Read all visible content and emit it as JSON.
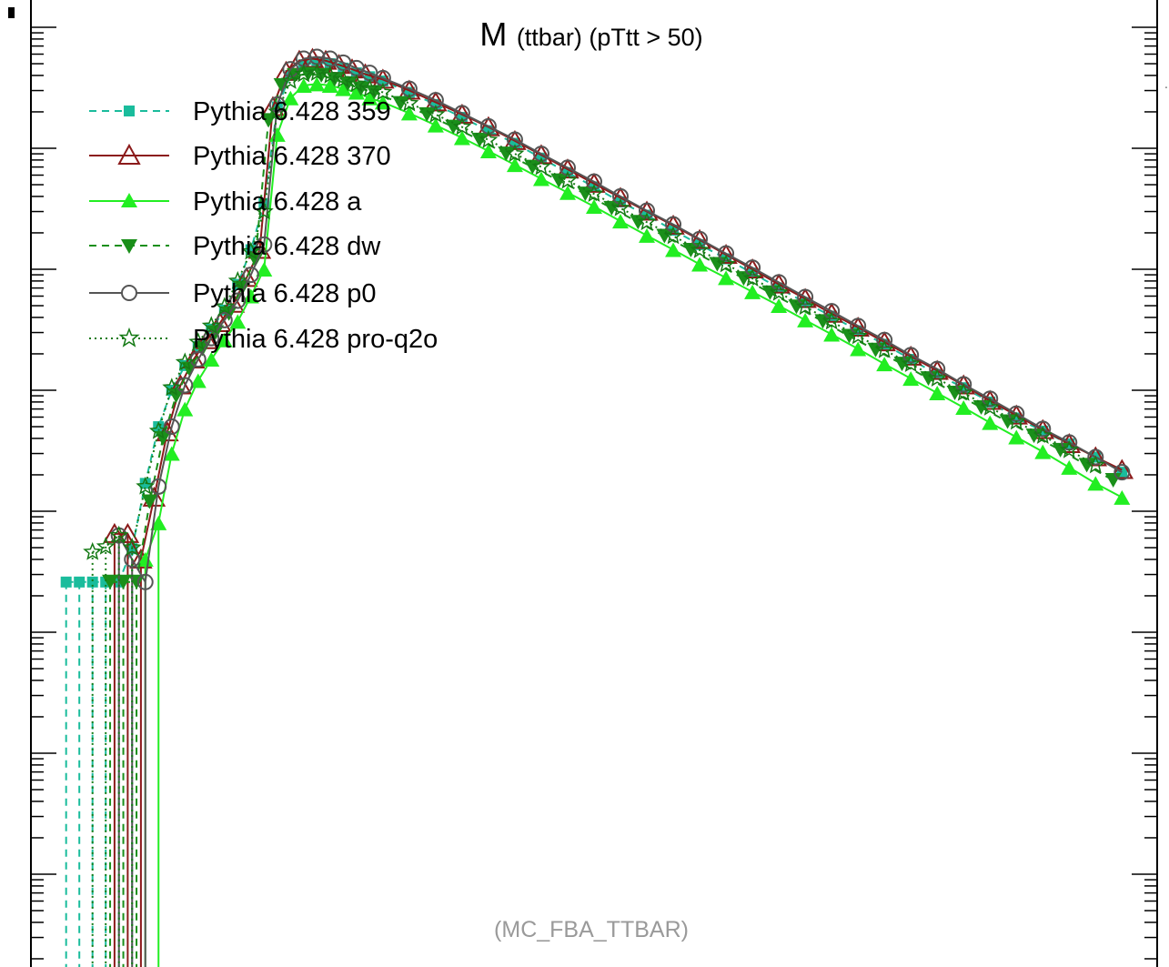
{
  "chart_data": {
    "type": "line",
    "title_main": "M",
    "title_sub": "(ttbar) (pTtt > 50)",
    "watermark": "(MC_FBA_TTBAR)",
    "xlabel": "",
    "ylabel": "",
    "yscale": "log",
    "legend_position": "top-left",
    "series": [
      {
        "name": "Pythia 6.428 359",
        "color": "#1abc9c",
        "line": "dashed",
        "marker": "square",
        "values": [
          [
            0.4,
            2.6e-07
          ],
          [
            0.55,
            2.6e-07
          ],
          [
            0.7,
            2.6e-07
          ],
          [
            0.85,
            2.6e-07
          ],
          [
            1.0,
            2.6e-07
          ],
          [
            1.15,
            4.9e-07
          ],
          [
            1.3,
            1.7e-06
          ],
          [
            1.45,
            5e-06
          ],
          [
            1.6,
            1e-05
          ],
          [
            1.75,
            1.6e-05
          ],
          [
            1.9,
            2.3e-05
          ],
          [
            2.05,
            3.2e-05
          ],
          [
            2.2,
            4.6e-05
          ],
          [
            2.35,
            7.5e-05
          ],
          [
            2.5,
            0.000145
          ],
          [
            2.65,
            0.00035
          ],
          [
            2.8,
            0.0022
          ],
          [
            2.95,
            0.004
          ],
          [
            3.1,
            0.0049
          ],
          [
            3.25,
            0.0051
          ],
          [
            3.4,
            0.005
          ],
          [
            3.55,
            0.0046
          ],
          [
            3.7,
            0.0042
          ],
          [
            3.85,
            0.0039
          ],
          [
            4.0,
            0.0036
          ],
          [
            4.3,
            0.0029
          ],
          [
            4.6,
            0.0023
          ],
          [
            4.9,
            0.0018
          ],
          [
            5.2,
            0.0014
          ],
          [
            5.5,
            0.0011
          ],
          [
            5.8,
            0.00083
          ],
          [
            6.1,
            0.00063
          ],
          [
            6.4,
            0.00048
          ],
          [
            6.7,
            0.00036
          ],
          [
            7.0,
            0.00028
          ],
          [
            7.3,
            0.00021
          ],
          [
            7.6,
            0.00016
          ],
          [
            7.9,
            0.000122
          ],
          [
            8.2,
            9.3e-05
          ],
          [
            8.5,
            7e-05
          ],
          [
            8.8,
            5.3e-05
          ],
          [
            9.1,
            4.1e-05
          ],
          [
            9.4,
            3.1e-05
          ],
          [
            9.7,
            2.4e-05
          ],
          [
            10.0,
            1.8e-05
          ],
          [
            10.3,
            1.35e-05
          ],
          [
            10.6,
            1.05e-05
          ],
          [
            10.9,
            8e-06
          ],
          [
            11.2,
            5.9e-06
          ],
          [
            11.5,
            4.6e-06
          ],
          [
            11.8,
            3.6e-06
          ],
          [
            12.1,
            2.8e-06
          ],
          [
            12.4,
            2.1e-06
          ]
        ]
      },
      {
        "name": "Pythia 6.428 370",
        "color": "#8b1a1a",
        "line": "solid",
        "marker": "triangle-up-open",
        "values": [
          [
            0.95,
            6.5e-07
          ],
          [
            1.1,
            6.5e-07
          ],
          [
            1.25,
            4e-07
          ],
          [
            1.4,
            1.3e-06
          ],
          [
            1.55,
            4.5e-06
          ],
          [
            1.7,
            1.1e-05
          ],
          [
            1.85,
            1.8e-05
          ],
          [
            2.0,
            2.6e-05
          ],
          [
            2.15,
            3.6e-05
          ],
          [
            2.3,
            5.2e-05
          ],
          [
            2.45,
            8.5e-05
          ],
          [
            2.6,
            0.000145
          ],
          [
            2.75,
            0.0022
          ],
          [
            2.9,
            0.0043
          ],
          [
            3.05,
            0.0053
          ],
          [
            3.2,
            0.0055
          ],
          [
            3.35,
            0.0053
          ],
          [
            3.5,
            0.0049
          ],
          [
            3.65,
            0.0045
          ],
          [
            3.8,
            0.0041
          ],
          [
            4.0,
            0.0037
          ],
          [
            4.3,
            0.003
          ],
          [
            4.6,
            0.0024
          ],
          [
            4.9,
            0.0019
          ],
          [
            5.2,
            0.0015
          ],
          [
            5.5,
            0.00115
          ],
          [
            5.8,
            0.00088
          ],
          [
            6.1,
            0.00067
          ],
          [
            6.4,
            0.00051
          ],
          [
            6.7,
            0.00039
          ],
          [
            7.0,
            0.0003
          ],
          [
            7.3,
            0.00023
          ],
          [
            7.6,
            0.000175
          ],
          [
            7.9,
            0.000132
          ],
          [
            8.2,
            0.0001
          ],
          [
            8.5,
            7.5e-05
          ],
          [
            8.8,
            5.7e-05
          ],
          [
            9.1,
            4.3e-05
          ],
          [
            9.4,
            3.3e-05
          ],
          [
            9.7,
            2.5e-05
          ],
          [
            10.0,
            1.9e-05
          ],
          [
            10.3,
            1.45e-05
          ],
          [
            10.6,
            1.1e-05
          ],
          [
            10.9,
            8.2e-06
          ],
          [
            11.2,
            6.2e-06
          ],
          [
            11.5,
            4.7e-06
          ],
          [
            11.8,
            3.6e-06
          ],
          [
            12.1,
            2.8e-06
          ],
          [
            12.4,
            2.2e-06
          ]
        ]
      },
      {
        "name": "Pythia 6.428 a",
        "color": "#22ee22",
        "line": "solid",
        "marker": "triangle-up",
        "values": [
          [
            1.3,
            4e-07
          ],
          [
            1.45,
            8e-07
          ],
          [
            1.6,
            3e-06
          ],
          [
            1.75,
            7e-06
          ],
          [
            1.9,
            1.2e-05
          ],
          [
            2.05,
            1.8e-05
          ],
          [
            2.2,
            2.6e-05
          ],
          [
            2.35,
            3.7e-05
          ],
          [
            2.5,
            6e-05
          ],
          [
            2.65,
            0.0001
          ],
          [
            2.8,
            0.0013
          ],
          [
            2.95,
            0.0026
          ],
          [
            3.1,
            0.0033
          ],
          [
            3.25,
            0.0034
          ],
          [
            3.4,
            0.0033
          ],
          [
            3.55,
            0.0031
          ],
          [
            3.7,
            0.0029
          ],
          [
            3.85,
            0.0026
          ],
          [
            4.0,
            0.0024
          ],
          [
            4.3,
            0.00195
          ],
          [
            4.6,
            0.00155
          ],
          [
            4.9,
            0.00122
          ],
          [
            5.2,
            0.00095
          ],
          [
            5.5,
            0.00073
          ],
          [
            5.8,
            0.00056
          ],
          [
            6.1,
            0.00043
          ],
          [
            6.4,
            0.00033
          ],
          [
            6.7,
            0.00025
          ],
          [
            7.0,
            0.00019
          ],
          [
            7.3,
            0.000145
          ],
          [
            7.6,
            0.00011
          ],
          [
            7.9,
            8.5e-05
          ],
          [
            8.2,
            6.5e-05
          ],
          [
            8.5,
            5e-05
          ],
          [
            8.8,
            3.8e-05
          ],
          [
            9.1,
            2.9e-05
          ],
          [
            9.4,
            2.2e-05
          ],
          [
            9.7,
            1.65e-05
          ],
          [
            10.0,
            1.25e-05
          ],
          [
            10.3,
            9.5e-06
          ],
          [
            10.6,
            7.2e-06
          ],
          [
            10.9,
            5.4e-06
          ],
          [
            11.2,
            4.1e-06
          ],
          [
            11.5,
            3.1e-06
          ],
          [
            11.8,
            2.3e-06
          ],
          [
            12.1,
            1.7e-06
          ],
          [
            12.4,
            1.3e-06
          ]
        ]
      },
      {
        "name": "Pythia 6.428 dw",
        "color": "#1a8f1a",
        "line": "dashed",
        "marker": "triangle-down",
        "values": [
          [
            0.9,
            2.6e-07
          ],
          [
            1.05,
            2.6e-07
          ],
          [
            1.2,
            2.6e-07
          ],
          [
            1.35,
            1.2e-06
          ],
          [
            1.5,
            4e-06
          ],
          [
            1.65,
            9e-06
          ],
          [
            1.8,
            1.5e-05
          ],
          [
            1.95,
            2.2e-05
          ],
          [
            2.1,
            3e-05
          ],
          [
            2.25,
            4.3e-05
          ],
          [
            2.4,
            7e-05
          ],
          [
            2.55,
            0.00012
          ],
          [
            2.7,
            0.0017
          ],
          [
            2.85,
            0.0033
          ],
          [
            3.0,
            0.004
          ],
          [
            3.15,
            0.0041
          ],
          [
            3.3,
            0.004
          ],
          [
            3.45,
            0.0037
          ],
          [
            3.6,
            0.0034
          ],
          [
            3.75,
            0.0031
          ],
          [
            3.9,
            0.0029
          ],
          [
            4.2,
            0.00235
          ],
          [
            4.5,
            0.0019
          ],
          [
            4.8,
            0.0015
          ],
          [
            5.1,
            0.00117
          ],
          [
            5.4,
            0.0009
          ],
          [
            5.7,
            0.0007
          ],
          [
            6.0,
            0.00054
          ],
          [
            6.3,
            0.00042
          ],
          [
            6.6,
            0.00032
          ],
          [
            6.9,
            0.000245
          ],
          [
            7.2,
            0.000188
          ],
          [
            7.5,
            0.000144
          ],
          [
            7.8,
            0.00011
          ],
          [
            8.1,
            8.4e-05
          ],
          [
            8.4,
            6.4e-05
          ],
          [
            8.7,
            4.9e-05
          ],
          [
            9.0,
            3.7e-05
          ],
          [
            9.3,
            2.8e-05
          ],
          [
            9.6,
            2.15e-05
          ],
          [
            9.9,
            1.65e-05
          ],
          [
            10.2,
            1.25e-05
          ],
          [
            10.5,
            9.5e-06
          ],
          [
            10.8,
            7.2e-06
          ],
          [
            11.1,
            5.5e-06
          ],
          [
            11.4,
            4.2e-06
          ],
          [
            11.7,
            3.2e-06
          ],
          [
            12.0,
            2.4e-06
          ],
          [
            12.3,
            1.8e-06
          ]
        ]
      },
      {
        "name": "Pythia 6.428 p0",
        "color": "#555555",
        "line": "solid",
        "marker": "circle-open",
        "values": [
          [
            1.0,
            6.3e-07
          ],
          [
            1.15,
            4e-07
          ],
          [
            1.3,
            2.6e-07
          ],
          [
            1.45,
            1.6e-06
          ],
          [
            1.6,
            5e-06
          ],
          [
            1.75,
            1.1e-05
          ],
          [
            1.9,
            1.8e-05
          ],
          [
            2.05,
            2.7e-05
          ],
          [
            2.2,
            3.8e-05
          ],
          [
            2.35,
            5.5e-05
          ],
          [
            2.5,
            9e-05
          ],
          [
            2.65,
            0.00016
          ],
          [
            2.8,
            0.0023
          ],
          [
            2.95,
            0.0045
          ],
          [
            3.1,
            0.0055
          ],
          [
            3.25,
            0.0057
          ],
          [
            3.4,
            0.0055
          ],
          [
            3.55,
            0.0051
          ],
          [
            3.7,
            0.0046
          ],
          [
            3.85,
            0.0042
          ],
          [
            4.0,
            0.0038
          ],
          [
            4.3,
            0.0031
          ],
          [
            4.6,
            0.0025
          ],
          [
            4.9,
            0.00195
          ],
          [
            5.2,
            0.00152
          ],
          [
            5.5,
            0.00118
          ],
          [
            5.8,
            0.0009
          ],
          [
            6.1,
            0.00069
          ],
          [
            6.4,
            0.00053
          ],
          [
            6.7,
            0.0004
          ],
          [
            7.0,
            0.000305
          ],
          [
            7.3,
            0.000235
          ],
          [
            7.6,
            0.000178
          ],
          [
            7.9,
            0.000135
          ],
          [
            8.2,
            0.000103
          ],
          [
            8.5,
            7.8e-05
          ],
          [
            8.8,
            5.9e-05
          ],
          [
            9.1,
            4.5e-05
          ],
          [
            9.4,
            3.4e-05
          ],
          [
            9.7,
            2.6e-05
          ],
          [
            10.0,
            1.95e-05
          ],
          [
            10.3,
            1.5e-05
          ],
          [
            10.6,
            1.12e-05
          ],
          [
            10.9,
            8.5e-06
          ],
          [
            11.2,
            6.4e-06
          ],
          [
            11.5,
            4.8e-06
          ],
          [
            11.8,
            3.7e-06
          ],
          [
            12.1,
            2.8e-06
          ],
          [
            12.4,
            2.1e-06
          ]
        ]
      },
      {
        "name": "Pythia 6.428 pro-q2o",
        "color": "#157a15",
        "line": "dotted",
        "marker": "star-open",
        "values": [
          [
            0.7,
            4.6e-07
          ],
          [
            0.85,
            5.1e-07
          ],
          [
            1.0,
            6.3e-07
          ],
          [
            1.15,
            5e-07
          ],
          [
            1.3,
            1.6e-06
          ],
          [
            1.45,
            4.6e-06
          ],
          [
            1.6,
            1.05e-05
          ],
          [
            1.75,
            1.7e-05
          ],
          [
            1.9,
            2.5e-05
          ],
          [
            2.05,
            3.4e-05
          ],
          [
            2.2,
            4.9e-05
          ],
          [
            2.35,
            8e-05
          ],
          [
            2.5,
            0.00014
          ],
          [
            2.65,
            0.0003
          ],
          [
            2.8,
            0.002
          ],
          [
            2.95,
            0.0036
          ],
          [
            3.1,
            0.0041
          ],
          [
            3.25,
            0.0042
          ],
          [
            3.4,
            0.004
          ],
          [
            3.55,
            0.0037
          ],
          [
            3.7,
            0.0034
          ],
          [
            3.85,
            0.0031
          ],
          [
            4.0,
            0.0029
          ],
          [
            4.3,
            0.00235
          ],
          [
            4.6,
            0.0019
          ],
          [
            4.9,
            0.0015
          ],
          [
            5.2,
            0.00117
          ],
          [
            5.5,
            0.0009
          ],
          [
            5.8,
            0.0007
          ],
          [
            6.1,
            0.00054
          ],
          [
            6.4,
            0.00042
          ],
          [
            6.7,
            0.00032
          ],
          [
            7.0,
            0.000245
          ],
          [
            7.3,
            0.000188
          ],
          [
            7.6,
            0.000144
          ],
          [
            7.9,
            0.00011
          ],
          [
            8.2,
            8.4e-05
          ],
          [
            8.5,
            6.4e-05
          ],
          [
            8.8,
            4.9e-05
          ],
          [
            9.1,
            3.7e-05
          ],
          [
            9.4,
            2.8e-05
          ],
          [
            9.7,
            2.15e-05
          ],
          [
            10.0,
            1.65e-05
          ],
          [
            10.3,
            1.25e-05
          ],
          [
            10.6,
            9.5e-06
          ],
          [
            10.9,
            7.2e-06
          ],
          [
            11.2,
            5.5e-06
          ],
          [
            11.5,
            4.2e-06
          ],
          [
            11.8,
            3.2e-06
          ],
          [
            12.1,
            2.4e-06
          ]
        ]
      }
    ]
  }
}
